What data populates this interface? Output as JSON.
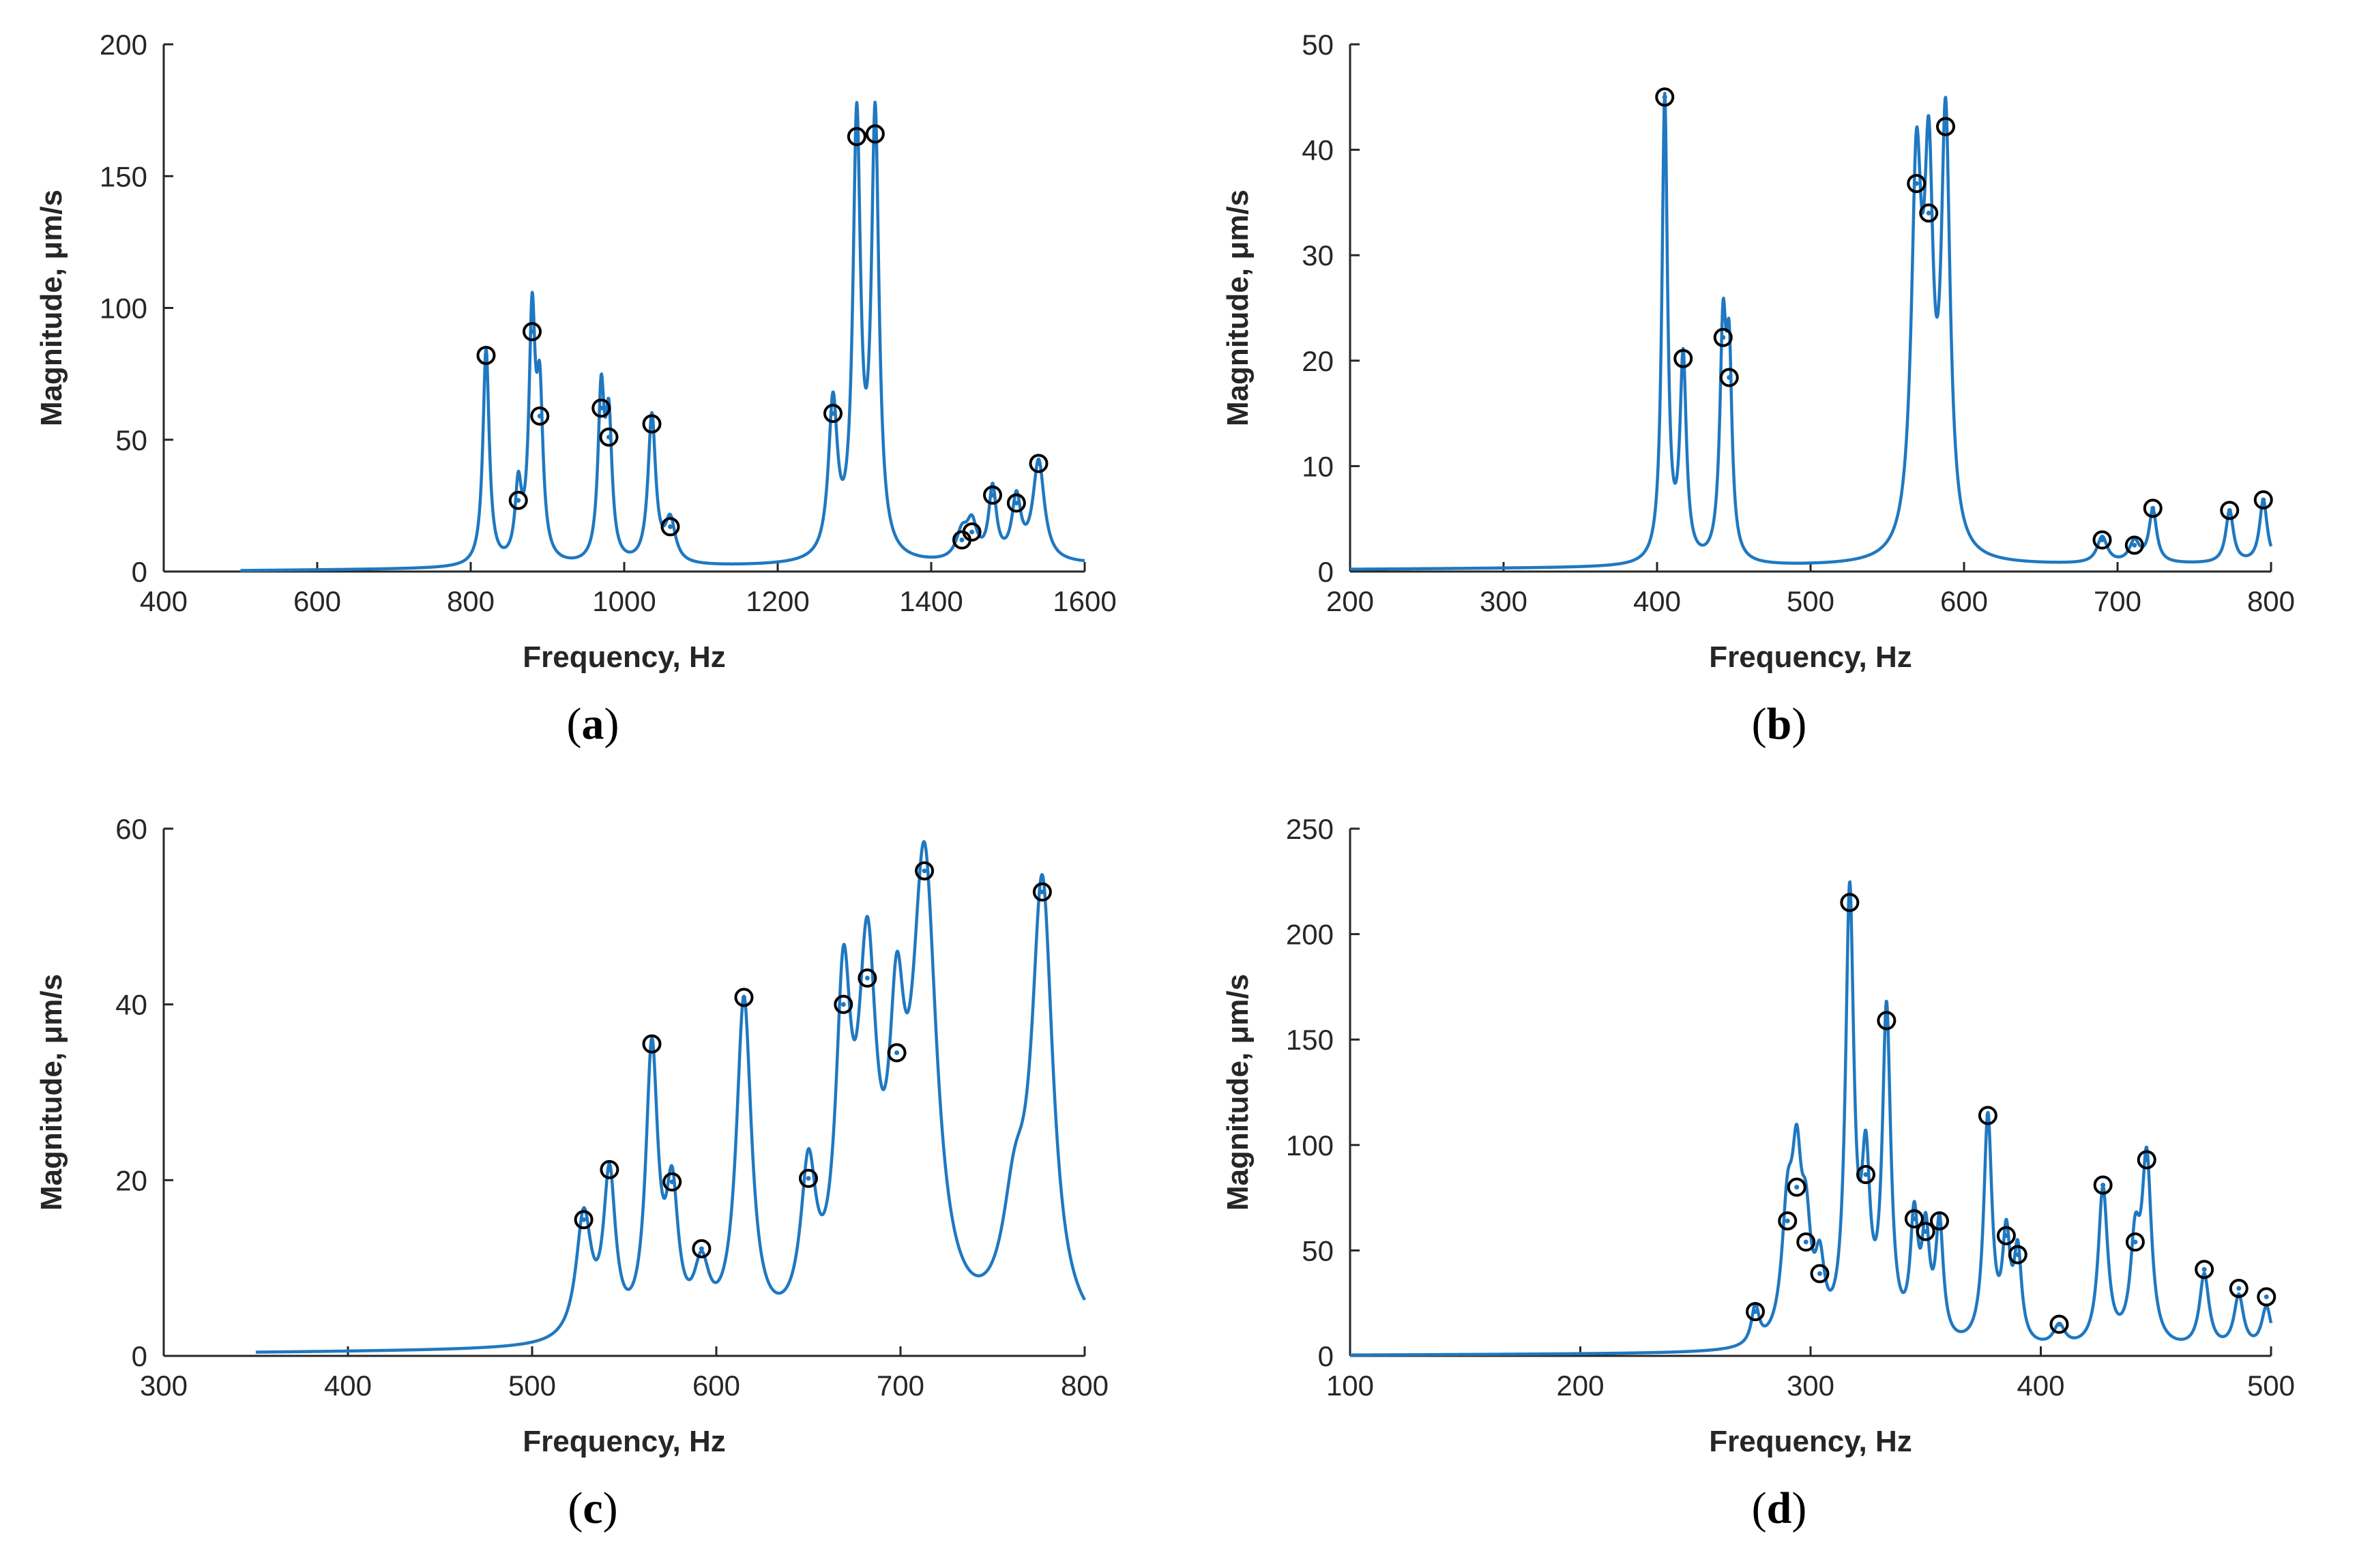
{
  "chart_data": [
    {
      "type": "line",
      "panel": "a",
      "caption_open": "(",
      "caption_letter": "a",
      "caption_close": ")",
      "xlabel": "Frequency, Hz",
      "ylabel": "Magnitude, μm/s",
      "xlim": [
        400,
        1600
      ],
      "ylim": [
        0,
        200
      ],
      "xticks": [
        400,
        600,
        800,
        1000,
        1200,
        1400,
        1600
      ],
      "yticks": [
        0,
        50,
        100,
        150,
        200
      ],
      "line_color": "#1f78c1",
      "x_start": 500,
      "x_end": 1600,
      "baseline": 0.3,
      "baseline_growth": 2.5,
      "peaks": [
        {
          "f": 820,
          "a": 82,
          "w": 5
        },
        {
          "f": 862,
          "a": 27,
          "w": 5
        },
        {
          "f": 880,
          "a": 90,
          "w": 5
        },
        {
          "f": 890,
          "a": 58,
          "w": 5
        },
        {
          "f": 970,
          "a": 62,
          "w": 5
        },
        {
          "f": 980,
          "a": 50,
          "w": 5
        },
        {
          "f": 1036,
          "a": 56,
          "w": 6
        },
        {
          "f": 1060,
          "a": 16,
          "w": 8
        },
        {
          "f": 1272,
          "a": 58,
          "w": 7
        },
        {
          "f": 1303,
          "a": 163,
          "w": 6
        },
        {
          "f": 1327,
          "a": 165,
          "w": 6
        },
        {
          "f": 1440,
          "a": 10,
          "w": 9
        },
        {
          "f": 1453,
          "a": 13,
          "w": 8
        },
        {
          "f": 1480,
          "a": 27,
          "w": 6
        },
        {
          "f": 1511,
          "a": 23,
          "w": 7
        },
        {
          "f": 1540,
          "a": 38,
          "w": 9
        }
      ],
      "markers": [
        {
          "x": 820,
          "y": 82
        },
        {
          "x": 862,
          "y": 27
        },
        {
          "x": 880,
          "y": 91
        },
        {
          "x": 890,
          "y": 59
        },
        {
          "x": 970,
          "y": 62
        },
        {
          "x": 980,
          "y": 51
        },
        {
          "x": 1036,
          "y": 56
        },
        {
          "x": 1060,
          "y": 17
        },
        {
          "x": 1272,
          "y": 60
        },
        {
          "x": 1303,
          "y": 165
        },
        {
          "x": 1327,
          "y": 166
        },
        {
          "x": 1440,
          "y": 12
        },
        {
          "x": 1453,
          "y": 15
        },
        {
          "x": 1480,
          "y": 29
        },
        {
          "x": 1511,
          "y": 26
        },
        {
          "x": 1540,
          "y": 41
        }
      ]
    },
    {
      "type": "line",
      "panel": "b",
      "caption_open": "(",
      "caption_letter": "b",
      "caption_close": ")",
      "xlabel": "Frequency, Hz",
      "ylabel": "Magnitude, μm/s",
      "xlim": [
        200,
        800
      ],
      "ylim": [
        0,
        50
      ],
      "xticks": [
        200,
        300,
        400,
        500,
        600,
        700,
        800
      ],
      "yticks": [
        0,
        10,
        20,
        30,
        40,
        50
      ],
      "line_color": "#1f78c1",
      "x_start": 200,
      "x_end": 800,
      "baseline": 0.2,
      "baseline_growth": 0.5,
      "peaks": [
        {
          "f": 405,
          "a": 44,
          "w": 2.2
        },
        {
          "f": 417,
          "a": 19,
          "w": 2.5
        },
        {
          "f": 443,
          "a": 21,
          "w": 2.5
        },
        {
          "f": 447,
          "a": 17,
          "w": 2.2
        },
        {
          "f": 569,
          "a": 35,
          "w": 4
        },
        {
          "f": 577,
          "a": 32,
          "w": 3.5
        },
        {
          "f": 588,
          "a": 40,
          "w": 3.5
        },
        {
          "f": 690,
          "a": 2.5,
          "w": 4
        },
        {
          "f": 711,
          "a": 2,
          "w": 4
        },
        {
          "f": 723,
          "a": 5,
          "w": 3
        },
        {
          "f": 773,
          "a": 5,
          "w": 3
        },
        {
          "f": 795,
          "a": 6,
          "w": 3
        }
      ],
      "markers": [
        {
          "x": 405,
          "y": 45
        },
        {
          "x": 417,
          "y": 20.2
        },
        {
          "x": 443,
          "y": 22.2
        },
        {
          "x": 447,
          "y": 18.4
        },
        {
          "x": 569,
          "y": 36.8
        },
        {
          "x": 577,
          "y": 34
        },
        {
          "x": 588,
          "y": 42.2
        },
        {
          "x": 690,
          "y": 3
        },
        {
          "x": 711,
          "y": 2.5
        },
        {
          "x": 723,
          "y": 6
        },
        {
          "x": 773,
          "y": 5.8
        },
        {
          "x": 795,
          "y": 6.8
        }
      ]
    },
    {
      "type": "line",
      "panel": "c",
      "caption_open": "(",
      "caption_letter": "c",
      "caption_close": ")",
      "xlabel": "Frequency, Hz",
      "ylabel": "Magnitude, μm/s",
      "xlim": [
        300,
        800
      ],
      "ylim": [
        0,
        60
      ],
      "xticks": [
        300,
        400,
        500,
        600,
        700,
        800
      ],
      "yticks": [
        0,
        20,
        40,
        60
      ],
      "line_color": "#1f78c1",
      "x_start": 350,
      "x_end": 800,
      "baseline": 0.3,
      "baseline_growth": 0.6,
      "peaks": [
        {
          "f": 528,
          "a": 14,
          "w": 5
        },
        {
          "f": 542,
          "a": 18,
          "w": 4
        },
        {
          "f": 565,
          "a": 32,
          "w": 4
        },
        {
          "f": 576,
          "a": 15,
          "w": 4
        },
        {
          "f": 592,
          "a": 7,
          "w": 5
        },
        {
          "f": 615,
          "a": 38,
          "w": 5
        },
        {
          "f": 650,
          "a": 17,
          "w": 5
        },
        {
          "f": 669,
          "a": 35,
          "w": 5
        },
        {
          "f": 682,
          "a": 38,
          "w": 6
        },
        {
          "f": 698,
          "a": 27,
          "w": 5
        },
        {
          "f": 713,
          "a": 52,
          "w": 8
        },
        {
          "f": 777,
          "a": 50,
          "w": 7
        },
        {
          "f": 762,
          "a": 12,
          "w": 8
        }
      ],
      "markers": [
        {
          "x": 528,
          "y": 15.5
        },
        {
          "x": 542,
          "y": 21.2
        },
        {
          "x": 565,
          "y": 35.5
        },
        {
          "x": 576,
          "y": 19.8
        },
        {
          "x": 592,
          "y": 12.2
        },
        {
          "x": 615,
          "y": 40.8
        },
        {
          "x": 650,
          "y": 20.2
        },
        {
          "x": 669,
          "y": 40
        },
        {
          "x": 682,
          "y": 43
        },
        {
          "x": 698,
          "y": 34.5
        },
        {
          "x": 713,
          "y": 55.2
        },
        {
          "x": 777,
          "y": 52.8
        }
      ]
    },
    {
      "type": "line",
      "panel": "d",
      "caption_open": "(",
      "caption_letter": "d",
      "caption_close": ")",
      "xlabel": "Frequency, Hz",
      "ylabel": "Magnitude, μm/s",
      "xlim": [
        100,
        500
      ],
      "ylim": [
        0,
        250
      ],
      "xticks": [
        100,
        200,
        300,
        400,
        500
      ],
      "yticks": [
        0,
        50,
        100,
        150,
        200,
        250
      ],
      "line_color": "#1f78c1",
      "x_start": 100,
      "x_end": 500,
      "baseline": 0.3,
      "baseline_growth": 1.5,
      "peaks": [
        {
          "f": 276,
          "a": 18,
          "w": 2
        },
        {
          "f": 290,
          "a": 58,
          "w": 3
        },
        {
          "f": 294,
          "a": 70,
          "w": 2.5
        },
        {
          "f": 298,
          "a": 45,
          "w": 2.5
        },
        {
          "f": 304,
          "a": 32,
          "w": 2.5
        },
        {
          "f": 317,
          "a": 210,
          "w": 2.2
        },
        {
          "f": 324,
          "a": 75,
          "w": 2.2
        },
        {
          "f": 333,
          "a": 155,
          "w": 2.2
        },
        {
          "f": 345,
          "a": 55,
          "w": 2
        },
        {
          "f": 350,
          "a": 48,
          "w": 2
        },
        {
          "f": 356,
          "a": 55,
          "w": 2
        },
        {
          "f": 377,
          "a": 108,
          "w": 2.2
        },
        {
          "f": 385,
          "a": 48,
          "w": 2
        },
        {
          "f": 390,
          "a": 42,
          "w": 2
        },
        {
          "f": 408,
          "a": 10,
          "w": 3
        },
        {
          "f": 427,
          "a": 75,
          "w": 2.5
        },
        {
          "f": 441,
          "a": 45,
          "w": 2.5
        },
        {
          "f": 446,
          "a": 86,
          "w": 2.5
        },
        {
          "f": 471,
          "a": 35,
          "w": 2.5
        },
        {
          "f": 486,
          "a": 25,
          "w": 2.5
        },
        {
          "f": 498,
          "a": 20,
          "w": 2.5
        }
      ],
      "markers": [
        {
          "x": 276,
          "y": 21
        },
        {
          "x": 290,
          "y": 64
        },
        {
          "x": 294,
          "y": 80
        },
        {
          "x": 298,
          "y": 54
        },
        {
          "x": 304,
          "y": 39
        },
        {
          "x": 317,
          "y": 215
        },
        {
          "x": 324,
          "y": 86
        },
        {
          "x": 333,
          "y": 159
        },
        {
          "x": 345,
          "y": 65
        },
        {
          "x": 350,
          "y": 59
        },
        {
          "x": 356,
          "y": 64
        },
        {
          "x": 377,
          "y": 114
        },
        {
          "x": 385,
          "y": 57
        },
        {
          "x": 390,
          "y": 48
        },
        {
          "x": 408,
          "y": 15
        },
        {
          "x": 427,
          "y": 81
        },
        {
          "x": 441,
          "y": 54
        },
        {
          "x": 446,
          "y": 93
        },
        {
          "x": 471,
          "y": 41
        },
        {
          "x": 486,
          "y": 32
        },
        {
          "x": 498,
          "y": 28
        }
      ]
    }
  ]
}
